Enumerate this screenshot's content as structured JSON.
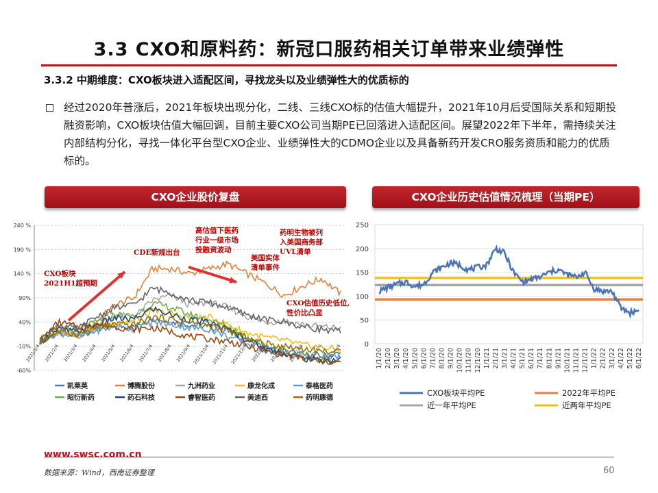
{
  "header": {
    "title": "3.3 CXO和原料药：新冠口服药相关订单带来业绩弹性",
    "subtitle": "3.3.2 中期维度：CXO板块进入适配区间，寻找龙头以及业绩弹性大的优质标的"
  },
  "body": {
    "paragraph": "经过2020年普涨后，2021年板块出现分化，二线、三线CXO标的估值大幅提升，2021年10月后受国际关系和短期投融资影响，CXO板块估值大幅回调，目前主要CXO公司当期PE已回落进入适配区间。展望2022年下半年，需持续关注内部结构分化，寻找一体化平台型CXO企业、业绩弹性大的CDMO企业以及具备新药开发CRO服务资质和能力的优质标的。"
  },
  "panels": {
    "left_title": "CXO企业股价复盘",
    "right_title": "CXO企业历史估值情况梳理（当期PE）"
  },
  "footer": {
    "url": "www.swsc.com.cn",
    "source": "数据来源：Wind，西南证券整理",
    "page": "60"
  },
  "colors": {
    "brand_red": "#b7141b",
    "pe_line": "#4a74b8",
    "avg_2022": "#e6803a",
    "avg_1y": "#a6a6a6",
    "avg_2y": "#f2bf1a"
  },
  "chart_data": [
    {
      "type": "line",
      "yticks": [
        "240 %",
        "190 %",
        "140 %",
        "90%",
        "40%",
        "-10%",
        "-60%"
      ],
      "ylim": [
        -60,
        240
      ],
      "xticks": [
        "2021/1/4",
        "2021/2/4",
        "2021/3/4",
        "2021/4/4",
        "2021/5/4",
        "2021/6/4",
        "2021/7/4",
        "2021/8/4",
        "2021/9/4",
        "2021/10/4",
        "2021/11/4",
        "2021/12/4",
        "2022/1/4",
        "2022/2/4",
        "2022/3/4",
        "2022/4/4",
        "2022/5/4"
      ],
      "series": [
        {
          "name": "凯莱英",
          "color": "#4a74b8",
          "values": [
            0,
            18,
            12,
            25,
            32,
            30,
            48,
            40,
            35,
            30,
            22,
            5,
            -15,
            -20,
            -28,
            -30,
            -25
          ]
        },
        {
          "name": "博腾股份",
          "color": "#e6803a",
          "values": [
            0,
            20,
            15,
            40,
            75,
            90,
            150,
            150,
            140,
            150,
            160,
            140,
            120,
            95,
            115,
            130,
            98
          ]
        },
        {
          "name": "九洲药业",
          "color": "#a6a6a6",
          "values": [
            0,
            15,
            10,
            30,
            55,
            50,
            85,
            95,
            75,
            80,
            70,
            52,
            40,
            42,
            35,
            30,
            28
          ]
        },
        {
          "name": "康龙化成",
          "color": "#f2bf1a",
          "values": [
            0,
            22,
            16,
            28,
            38,
            42,
            62,
            58,
            48,
            50,
            35,
            18,
            8,
            2,
            -8,
            -12,
            -18
          ]
        },
        {
          "name": "泰格医药",
          "color": "#5b9bd5",
          "values": [
            0,
            18,
            10,
            22,
            30,
            26,
            40,
            35,
            28,
            25,
            10,
            -5,
            -18,
            -25,
            -32,
            -35,
            -32
          ]
        },
        {
          "name": "昭衍新药",
          "color": "#71ad47",
          "values": [
            0,
            30,
            22,
            40,
            55,
            52,
            78,
            70,
            55,
            45,
            30,
            10,
            -10,
            -20,
            -30,
            -38,
            -40
          ]
        },
        {
          "name": "药石科技",
          "color": "#264478",
          "values": [
            0,
            25,
            20,
            35,
            48,
            45,
            68,
            55,
            45,
            38,
            25,
            5,
            -15,
            -25,
            -35,
            -40,
            -38
          ]
        },
        {
          "name": "睿智医药",
          "color": "#9e480e",
          "values": [
            0,
            40,
            30,
            35,
            30,
            25,
            28,
            20,
            10,
            5,
            0,
            -10,
            -20,
            -28,
            -35,
            -40,
            -45
          ]
        },
        {
          "name": "美迪西",
          "color": "#636363",
          "values": [
            0,
            35,
            25,
            50,
            70,
            75,
            110,
            100,
            85,
            80,
            70,
            55,
            45,
            40,
            30,
            25,
            20
          ]
        },
        {
          "name": "药明康德",
          "color": "#997300",
          "values": [
            0,
            20,
            15,
            28,
            35,
            34,
            50,
            45,
            38,
            34,
            22,
            8,
            -5,
            -10,
            -15,
            -20,
            -22
          ]
        }
      ],
      "annotations": [
        {
          "text": [
            "CXO板块",
            "2021H1超预期"
          ],
          "color": "#c00000"
        },
        {
          "text": [
            "CDE新规出台"
          ],
          "color": "#c00000"
        },
        {
          "text": [
            "高估值下医药",
            "行业一级市场",
            "投融资波动"
          ],
          "color": "#c00000"
        },
        {
          "text": [
            "美国实体",
            "清单事件"
          ],
          "color": "#c00000"
        },
        {
          "text": [
            "药明生物被列",
            "入美国商务部",
            "UVL清单"
          ],
          "color": "#c00000"
        },
        {
          "text": [
            "CXO估值历史低位,",
            "性价比凸显"
          ],
          "color": "#c00000"
        }
      ]
    },
    {
      "type": "line",
      "yticks": [
        "250",
        "200",
        "150",
        "100",
        "50",
        "0"
      ],
      "ylim": [
        0,
        250
      ],
      "xticks": [
        "1/1/20",
        "2/1/20",
        "3/1/20",
        "4/1/20",
        "5/1/20",
        "6/1/20",
        "7/1/20",
        "8/1/20",
        "9/1/20",
        "10/1/20",
        "11/1/20",
        "12/1/20",
        "1/1/21",
        "2/1/21",
        "3/1/21",
        "4/1/21",
        "5/1/21",
        "6/1/21",
        "7/1/21",
        "8/1/21",
        "9/1/21",
        "10/1/21",
        "11/1/21",
        "12/1/21",
        "1/1/22",
        "2/1/22",
        "3/1/22",
        "4/1/22",
        "5/1/22",
        "6/1/22"
      ],
      "series": [
        {
          "name": "CXO板块平均PE",
          "color": "#4a74b8",
          "values": [
            110,
            118,
            125,
            130,
            120,
            125,
            150,
            160,
            170,
            165,
            155,
            160,
            165,
            200,
            190,
            150,
            130,
            135,
            140,
            150,
            155,
            145,
            140,
            150,
            115,
            110,
            110,
            75,
            65,
            70
          ]
        },
        {
          "name": "2022年平均PE",
          "color": "#e6803a",
          "constant": 93
        },
        {
          "name": "近一年平均PE",
          "color": "#a6a6a6",
          "constant": 123
        },
        {
          "name": "近两年平均PE",
          "color": "#f2bf1a",
          "constant": 138
        }
      ]
    }
  ]
}
